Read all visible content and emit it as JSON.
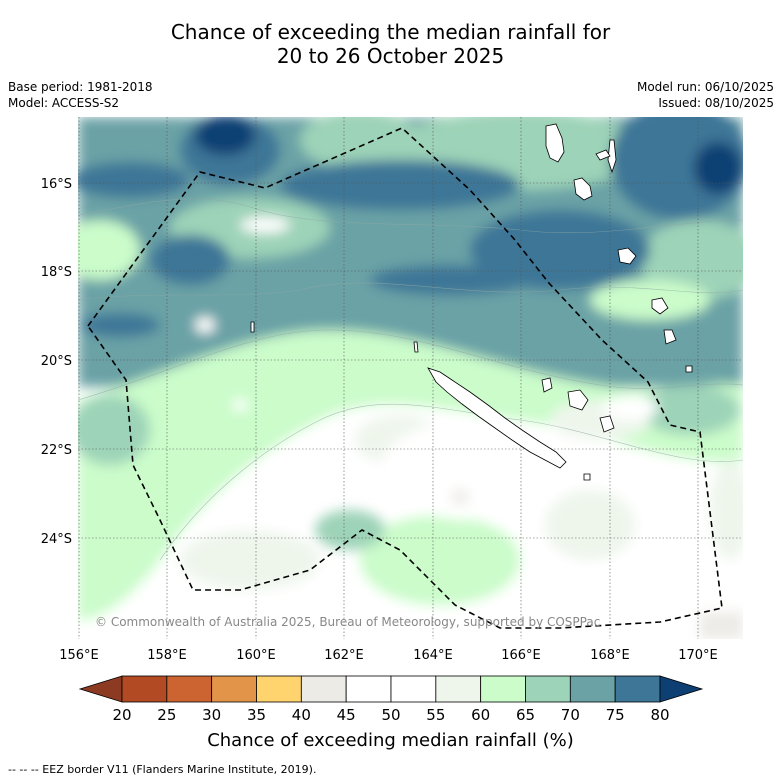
{
  "title_line1": "Chance of exceeding the median rainfall for",
  "title_line2": "20 to 26 October 2025",
  "meta": {
    "base_period": "Base period: 1981-2018",
    "model": "Model: ACCESS-S2",
    "model_run": "Model run: 06/10/2025",
    "issued": "Issued: 08/10/2025"
  },
  "axes": {
    "lon_labels": [
      "156°E",
      "158°E",
      "160°E",
      "162°E",
      "164°E",
      "166°E",
      "168°E",
      "170°E"
    ],
    "lat_labels": [
      "16°S",
      "18°S",
      "20°S",
      "22°S",
      "24°S"
    ]
  },
  "copyright": "© Commonwealth of Australia 2025, Bureau of Meteorology, supported by COSPPac",
  "colorbar": {
    "title": "Chance of exceeding median rainfall (%)",
    "ticks": [
      "20",
      "25",
      "30",
      "35",
      "40",
      "45",
      "50",
      "55",
      "60",
      "65",
      "70",
      "75",
      "80"
    ],
    "under_color": "#8c3a22",
    "over_color": "#0d3f73",
    "colors": [
      "#b24a24",
      "#cc6432",
      "#e29548",
      "#ffd36e",
      "#ecebe6",
      "#ffffff",
      "#ffffff",
      "#eef6ec",
      "#cbfcca",
      "#9dd3b8",
      "#6ba2a6",
      "#3d7697"
    ]
  },
  "legend_note": "--  --  -- EEZ border V11 (Flanders Marine Institute, 2019)."
}
